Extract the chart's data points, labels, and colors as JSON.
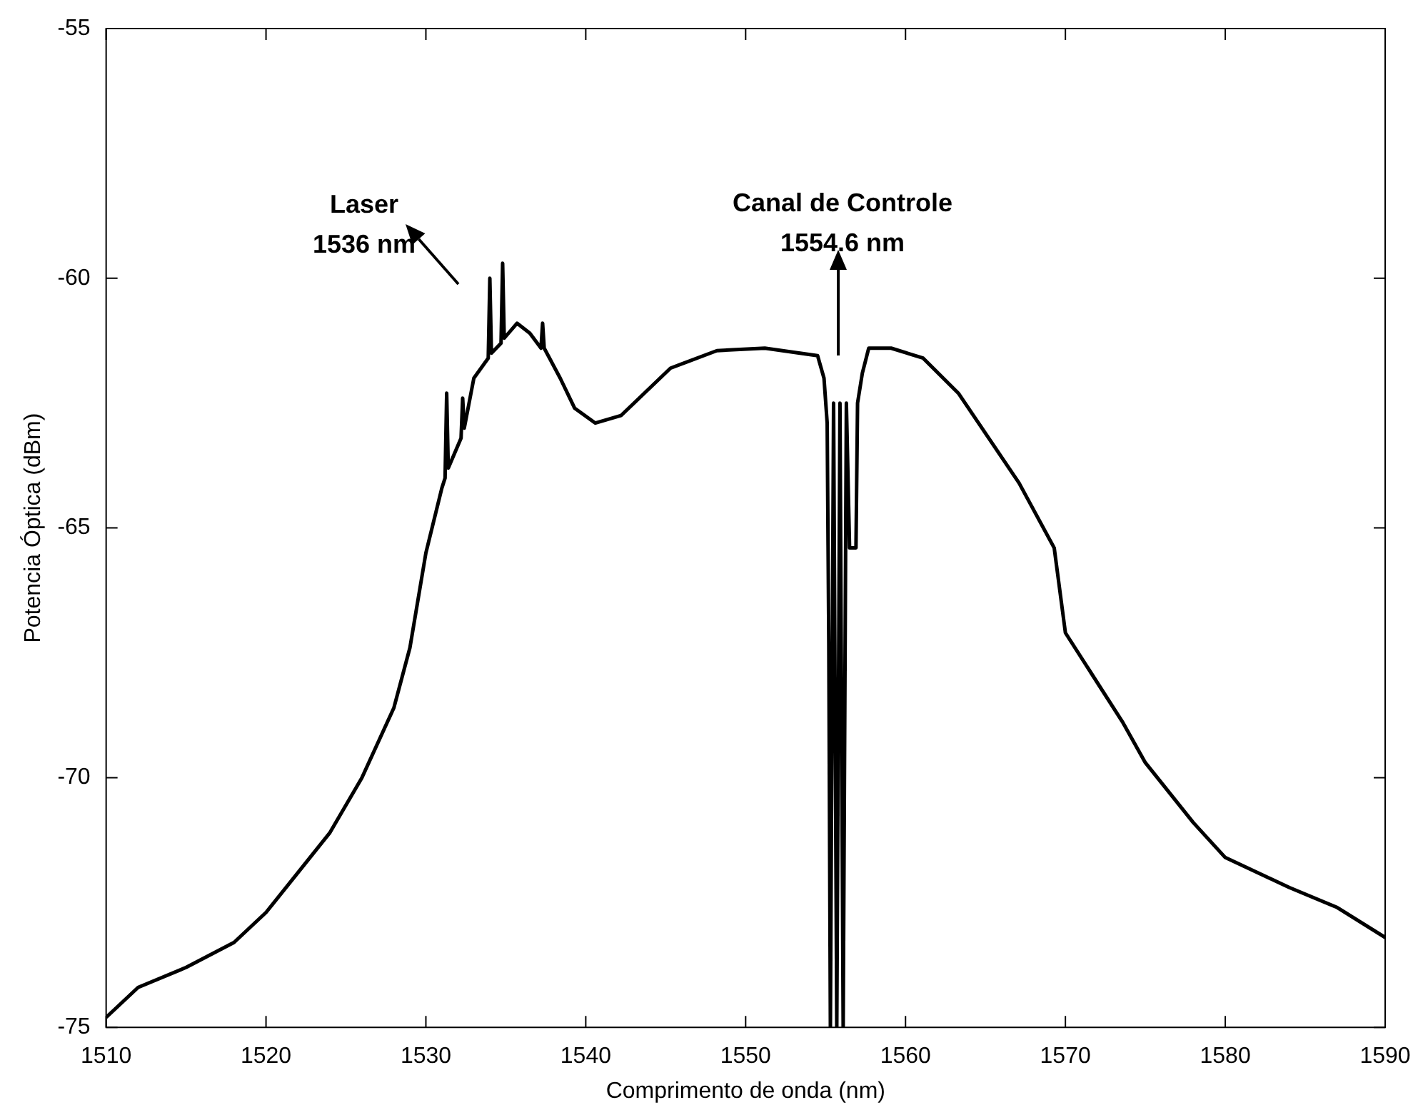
{
  "chart_data": {
    "type": "line",
    "xlabel": "Comprimento de onda (nm)",
    "ylabel": "Potencia Óptica (dBm)",
    "color": "#000000",
    "x": [
      1510,
      1512,
      1515,
      1518,
      1520,
      1522,
      1524,
      1526,
      1528,
      1529,
      1530,
      1531,
      1531.2,
      1531.3,
      1531.4,
      1532.2,
      1532.3,
      1532.4,
      1533,
      1533.9,
      1534,
      1534.1,
      1534.7,
      1534.8,
      1534.9,
      1535.7,
      1536.5,
      1537.2,
      1537.3,
      1537.4,
      1538.4,
      1539.3,
      1540.6,
      1542.2,
      1545.3,
      1548.2,
      1551.2,
      1554.5,
      1554.9,
      1555.1,
      1555.2,
      1555.3,
      1555.5,
      1555.7,
      1555.9,
      1556.1,
      1556.3,
      1556.5,
      1556.9,
      1557,
      1557.3,
      1557.7,
      1559.1,
      1561.1,
      1563.3,
      1565.2,
      1567.1,
      1569.3,
      1570,
      1573.6,
      1575,
      1578,
      1580,
      1584,
      1587,
      1590
    ],
    "values": [
      -74.8,
      -74.2,
      -73.8,
      -73.3,
      -72.7,
      -71.9,
      -71.1,
      -70,
      -68.6,
      -67.4,
      -65.5,
      -64.2,
      -64,
      -62.3,
      -63.8,
      -63.2,
      -62.4,
      -63,
      -62,
      -61.6,
      -60,
      -61.5,
      -61.3,
      -59.7,
      -61.2,
      -60.9,
      -61.1,
      -61.4,
      -60.9,
      -61.4,
      -62,
      -62.6,
      -62.9,
      -62.75,
      -61.8,
      -61.45,
      -61.4,
      -61.55,
      -62,
      -62.9,
      -67.3,
      -75,
      -62.5,
      -75,
      -62.5,
      -75,
      -62.5,
      -65.4,
      -65.4,
      -62.5,
      -61.9,
      -61.4,
      -61.4,
      -61.6,
      -62.3,
      -63.2,
      -64.1,
      -65.4,
      -67.1,
      -68.9,
      -69.7,
      -70.9,
      -71.6,
      -72.2,
      -72.6,
      -73.2
    ],
    "xlim": [
      1510,
      1590
    ],
    "xticks": [
      1510,
      1520,
      1530,
      1540,
      1550,
      1560,
      1570,
      1580,
      1590
    ],
    "ylim": [
      -75,
      -55
    ],
    "yticks": [
      -75,
      -70,
      -65,
      -60,
      -55
    ],
    "annotations": [
      "Laser\n1536 nm",
      "Canal de Controle\n1554.6 nm"
    ]
  }
}
